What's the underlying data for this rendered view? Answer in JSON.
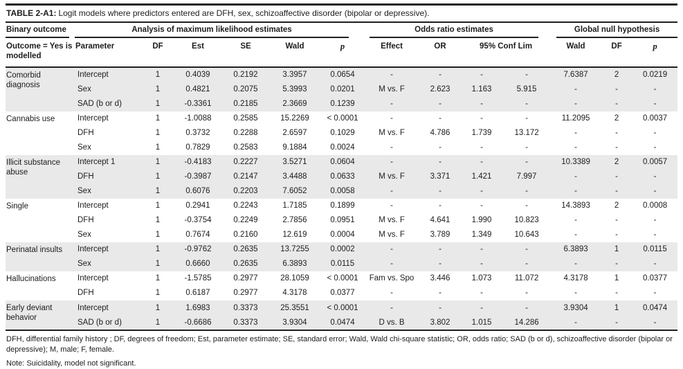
{
  "title": {
    "label": "TABLE 2-A1:",
    "text": "Logit models where predictors entered are DFH, sex, schizoaffective disorder (bipolar or depressive)."
  },
  "table": {
    "header": {
      "groups": [
        {
          "label": "Binary outcome"
        },
        {
          "label": "Analysis of maximum likelihood estimates"
        },
        {
          "label": "Odds ratio estimates"
        },
        {
          "label": "Global null hypothesis"
        }
      ],
      "columns": [
        "Outcome = Yes is modelled",
        "Parameter",
        "DF",
        "Est",
        "SE",
        "Wald",
        "p",
        "Effect",
        "OR",
        "95% Conf Lim",
        "Wald",
        "DF",
        "p"
      ]
    },
    "groups": [
      {
        "outcome": "Comorbid diagnosis",
        "rows": [
          [
            "Intercept",
            "1",
            "0.4039",
            "0.2192",
            "3.3957",
            "0.0654",
            "-",
            "-",
            "-",
            "-",
            "7.6387",
            "2",
            "0.0219"
          ],
          [
            "Sex",
            "1",
            "0.4821",
            "0.2075",
            "5.3993",
            "0.0201",
            "M vs. F",
            "2.623",
            "1.163",
            "5.915",
            "-",
            "-",
            "-"
          ],
          [
            "SAD (b or d)",
            "1",
            "-0.3361",
            "0.2185",
            "2.3669",
            "0.1239",
            "-",
            "-",
            "-",
            "-",
            "-",
            "-",
            "-"
          ]
        ]
      },
      {
        "outcome": "Cannabis use",
        "rows": [
          [
            "Intercept",
            "1",
            "-1.0088",
            "0.2585",
            "15.2269",
            "< 0.0001",
            "-",
            "-",
            "-",
            "-",
            "11.2095",
            "2",
            "0.0037"
          ],
          [
            "DFH",
            "1",
            "0.3732",
            "0.2288",
            "2.6597",
            "0.1029",
            "M vs. F",
            "4.786",
            "1.739",
            "13.172",
            "-",
            "-",
            "-"
          ],
          [
            "Sex",
            "1",
            "0.7829",
            "0.2583",
            "9.1884",
            "0.0024",
            "-",
            "-",
            "-",
            "-",
            "-",
            "-",
            "-"
          ]
        ]
      },
      {
        "outcome": "Illicit substance abuse",
        "rows": [
          [
            "Intercept 1",
            "1",
            "-0.4183",
            "0.2227",
            "3.5271",
            "0.0604",
            "-",
            "-",
            "-",
            "-",
            "10.3389",
            "2",
            "0.0057"
          ],
          [
            "DFH",
            "1",
            "-0.3987",
            "0.2147",
            "3.4488",
            "0.0633",
            "M vs. F",
            "3.371",
            "1.421",
            "7.997",
            "-",
            "-",
            "-"
          ],
          [
            "Sex",
            "1",
            "0.6076",
            "0.2203",
            "7.6052",
            "0.0058",
            "-",
            "-",
            "-",
            "-",
            "-",
            "-",
            "-"
          ]
        ]
      },
      {
        "outcome": "Single",
        "rows": [
          [
            "Intercept",
            "1",
            "0.2941",
            "0.2243",
            "1.7185",
            "0.1899",
            "-",
            "-",
            "-",
            "-",
            "14.3893",
            "2",
            "0.0008"
          ],
          [
            "DFH",
            "1",
            "-0.3754",
            "0.2249",
            "2.7856",
            "0.0951",
            "M vs. F",
            "4.641",
            "1.990",
            "10.823",
            "-",
            "-",
            "-"
          ],
          [
            "Sex",
            "1",
            "0.7674",
            "0.2160",
            "12.619",
            "0.0004",
            "M vs. F",
            "3.789",
            "1.349",
            "10.643",
            "-",
            "-",
            "-"
          ]
        ]
      },
      {
        "outcome": "Perinatal insults",
        "rows": [
          [
            "Intercept",
            "1",
            "-0.9762",
            "0.2635",
            "13.7255",
            "0.0002",
            "-",
            "-",
            "-",
            "-",
            "6.3893",
            "1",
            "0.0115"
          ],
          [
            "Sex",
            "1",
            "0.6660",
            "0.2635",
            "6.3893",
            "0.0115",
            "-",
            "-",
            "-",
            "-",
            "-",
            "-",
            "-"
          ]
        ]
      },
      {
        "outcome": "Hallucinations",
        "rows": [
          [
            "Intercept",
            "1",
            "-1.5785",
            "0.2977",
            "28.1059",
            "< 0.0001",
            "Fam vs. Spo",
            "3.446",
            "1.073",
            "11.072",
            "4.3178",
            "1",
            "0.0377"
          ],
          [
            "DFH",
            "1",
            "0.6187",
            "0.2977",
            "4.3178",
            "0.0377",
            "-",
            "-",
            "-",
            "-",
            "-",
            "-",
            "-"
          ]
        ]
      },
      {
        "outcome": "Early deviant behavior",
        "rows": [
          [
            "Intercept",
            "1",
            "1.6983",
            "0.3373",
            "25.3551",
            "< 0.0001",
            "-",
            "-",
            "-",
            "-",
            "3.9304",
            "1",
            "0.0474"
          ],
          [
            "SAD (b or d)",
            "1",
            "-0.6686",
            "0.3373",
            "3.9304",
            "0.0474",
            "D vs. B",
            "3.802",
            "1.015",
            "14.286",
            "-",
            "-",
            "-"
          ]
        ]
      }
    ]
  },
  "footnotes": {
    "abbreviations": "DFH, differential family history ; DF, degrees of freedom; Est, parameter estimate; SE, standard error; Wald, Wald chi-square statistic; OR, odds ratio; SAD (b or d), schizoaffective disorder (bipolar or depressive); M, male; F, female.",
    "note": "Note: Suicidality, model not significant."
  },
  "colors": {
    "row_shading": "#e9e9e9",
    "text": "#1c1c1c",
    "rule": "#1f1f1f"
  }
}
